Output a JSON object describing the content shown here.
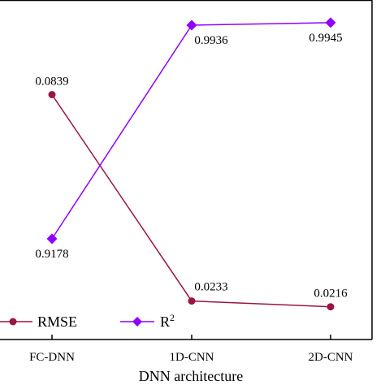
{
  "chart_data": {
    "type": "line",
    "xlabel": "DNN architecture",
    "categories": [
      "FC-DNN",
      "1D-CNN",
      "2D-CNN"
    ],
    "series": [
      {
        "name": "RMSE",
        "values": [
          0.0839,
          0.0233,
          0.0216
        ],
        "data_labels": [
          "0.0839",
          "0.0233",
          "0.0216"
        ],
        "color": "#9b1446",
        "marker": "circle"
      },
      {
        "name": "R2",
        "legend_main": "R",
        "legend_sup": "2",
        "values": [
          0.9178,
          0.9936,
          0.9945
        ],
        "data_labels": [
          "0.9178",
          "0.9936",
          "0.9945"
        ],
        "color": "#8f00ff",
        "marker": "diamond"
      }
    ],
    "legend_position": "bottom-left",
    "grid": false
  }
}
